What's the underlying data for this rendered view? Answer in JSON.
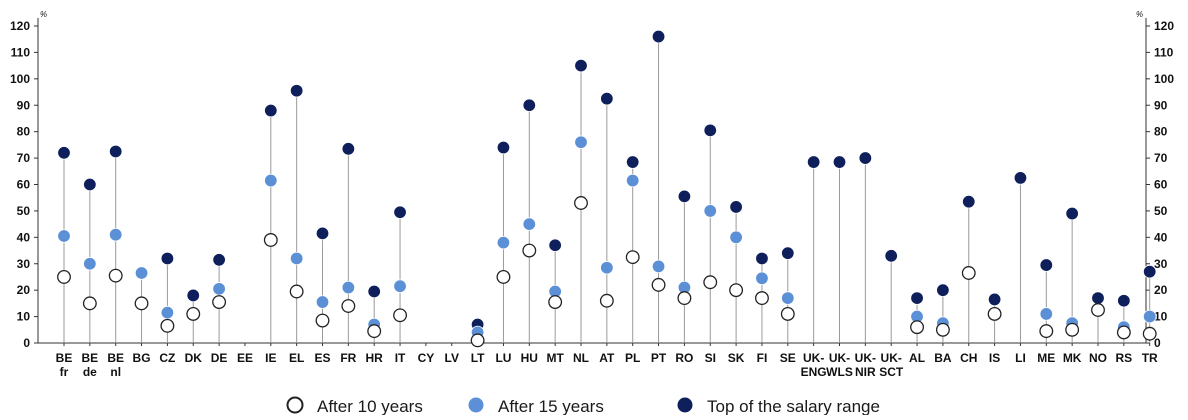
{
  "chart_data": {
    "type": "scatter",
    "unit": "%",
    "ylim": [
      0,
      120
    ],
    "y_ticks": [
      0,
      10,
      20,
      30,
      40,
      50,
      60,
      70,
      80,
      90,
      100,
      110,
      120
    ],
    "grid": false,
    "legend_position": "bottom",
    "categories": [
      [
        "BE",
        "fr"
      ],
      [
        "BE",
        "de"
      ],
      [
        "BE",
        "nl"
      ],
      [
        "BG"
      ],
      [
        "CZ"
      ],
      [
        "DK"
      ],
      [
        "DE"
      ],
      [
        "EE"
      ],
      [
        "IE"
      ],
      [
        "EL"
      ],
      [
        "ES"
      ],
      [
        "FR"
      ],
      [
        "HR"
      ],
      [
        "IT"
      ],
      [
        "CY"
      ],
      [
        "LV"
      ],
      [
        "LT"
      ],
      [
        "LU"
      ],
      [
        "HU"
      ],
      [
        "MT"
      ],
      [
        "NL"
      ],
      [
        "AT"
      ],
      [
        "PL"
      ],
      [
        "PT"
      ],
      [
        "RO"
      ],
      [
        "SI"
      ],
      [
        "SK"
      ],
      [
        "FI"
      ],
      [
        "SE"
      ],
      [
        "UK-",
        "ENG"
      ],
      [
        "UK-",
        "WLS"
      ],
      [
        "UK-",
        "NIR"
      ],
      [
        "UK-",
        "SCT"
      ],
      [
        "AL"
      ],
      [
        "BA"
      ],
      [
        "CH"
      ],
      [
        "IS"
      ],
      [
        "LI"
      ],
      [
        "ME"
      ],
      [
        "MK"
      ],
      [
        "NO"
      ],
      [
        "RS"
      ],
      [
        "TR"
      ]
    ],
    "series": [
      {
        "name": "After 10 years",
        "color": "#ffffff",
        "values": [
          25,
          15,
          25.5,
          15,
          6.5,
          11,
          15.5,
          null,
          39,
          19.5,
          8.5,
          14,
          4.5,
          10.5,
          null,
          null,
          1,
          25,
          35,
          15.5,
          53,
          16,
          32.5,
          22,
          17,
          23,
          20,
          17,
          11,
          null,
          null,
          null,
          null,
          6,
          5,
          26.5,
          11,
          null,
          4.5,
          5,
          12.5,
          4,
          3.5
        ]
      },
      {
        "name": "After 15 years",
        "color": "#5b8fd6",
        "values": [
          40.5,
          30,
          41,
          26.5,
          11.5,
          null,
          20.5,
          null,
          61.5,
          32,
          15.5,
          21,
          7,
          21.5,
          null,
          null,
          4,
          38,
          45,
          19.5,
          76,
          28.5,
          61.5,
          29,
          21,
          50,
          40,
          24.5,
          17,
          null,
          null,
          null,
          null,
          10,
          7.5,
          null,
          null,
          null,
          11,
          7.5,
          12.5,
          6,
          10
        ]
      },
      {
        "name": "Top of the salary range",
        "color": "#0f1f5c",
        "values": [
          72,
          60,
          72.5,
          null,
          32,
          18,
          31.5,
          null,
          88,
          95.5,
          41.5,
          73.5,
          19.5,
          49.5,
          null,
          null,
          7,
          74,
          90,
          37,
          105,
          92.5,
          68.5,
          116,
          55.5,
          80.5,
          51.5,
          32,
          34,
          68.5,
          68.5,
          70,
          33,
          17,
          20,
          53.5,
          16.5,
          62.5,
          29.5,
          49,
          17,
          16,
          27
        ]
      }
    ]
  }
}
